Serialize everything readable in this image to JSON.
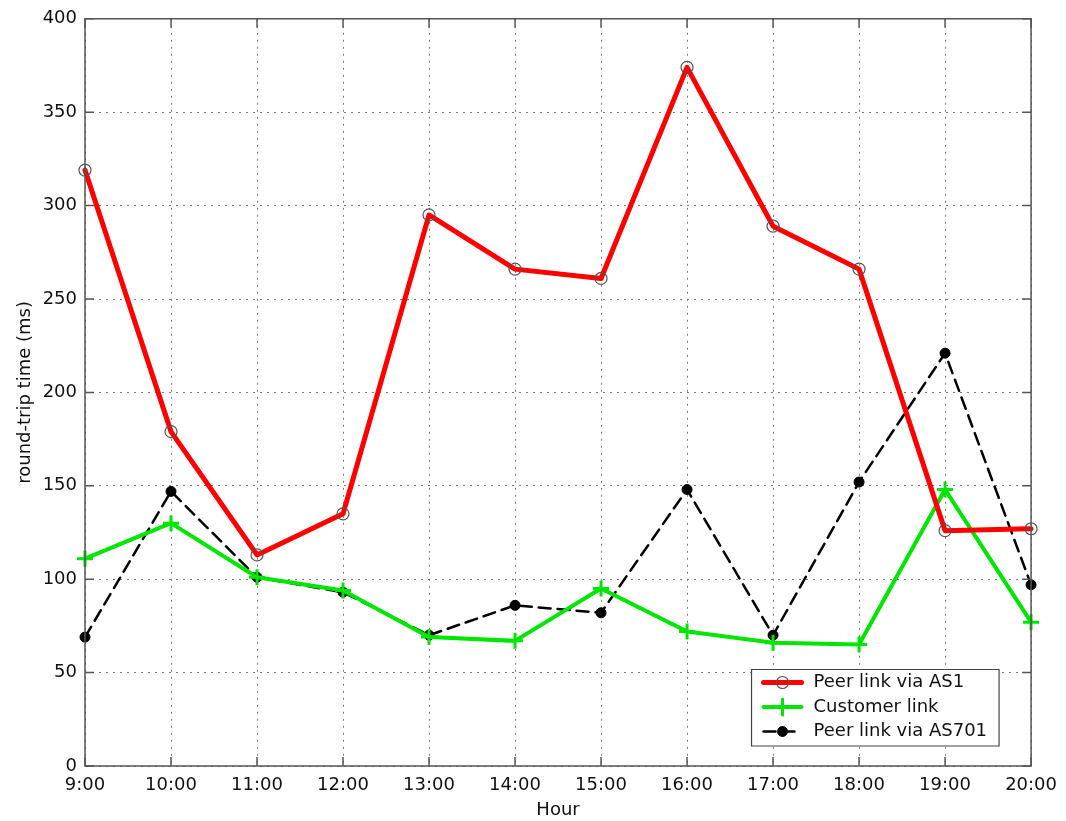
{
  "chart_data": {
    "type": "line",
    "xlabel": "Hour",
    "ylabel": "round-trip time (ms)",
    "categories": [
      "9:00",
      "10:00",
      "11:00",
      "12:00",
      "13:00",
      "14:00",
      "15:00",
      "16:00",
      "17:00",
      "18:00",
      "19:00",
      "20:00"
    ],
    "ylim": [
      0,
      400
    ],
    "yticks": [
      0,
      50,
      100,
      150,
      200,
      250,
      300,
      350,
      400
    ],
    "grid": true,
    "legend": "bottom right",
    "series": [
      {
        "name": "Peer link via AS1",
        "color": "#ff0000",
        "marker": "circle",
        "line_style": "solid",
        "values": [
          319,
          179,
          113,
          135,
          295,
          266,
          261,
          374,
          289,
          266,
          126,
          127
        ]
      },
      {
        "name": "Customer link",
        "color": "#00e600",
        "marker": "cross",
        "line_style": "solid",
        "values": [
          111,
          130,
          101,
          94,
          69,
          67,
          95,
          72,
          66,
          65,
          148,
          77
        ]
      },
      {
        "name": "Peer link via AS701",
        "color": "#000000",
        "marker": "circle",
        "line_style": "dashed",
        "values": [
          69,
          147,
          101,
          93,
          70,
          86,
          82,
          148,
          70,
          152,
          221,
          97
        ]
      }
    ]
  }
}
